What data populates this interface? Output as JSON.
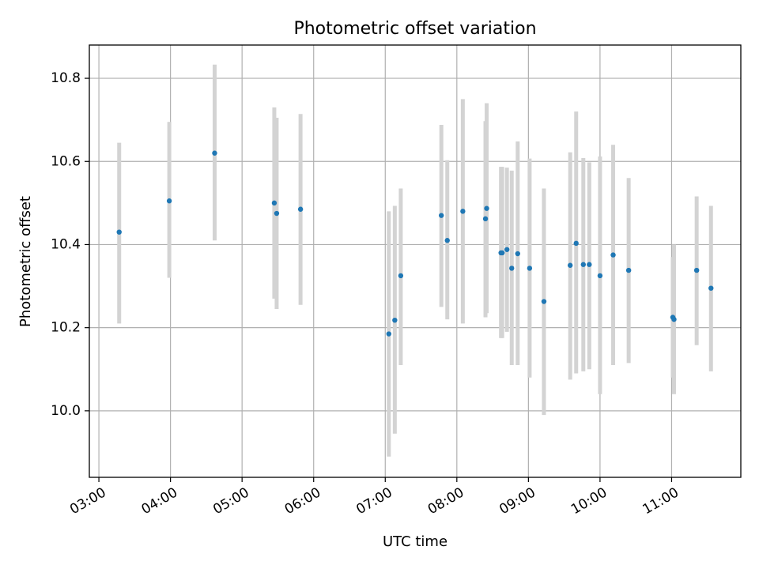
{
  "chart_data": {
    "type": "scatter",
    "title": "Photometric offset variation",
    "xlabel": "UTC time",
    "ylabel": "Photometric offset",
    "grid": true,
    "xlim": [
      "02:52",
      "11:58"
    ],
    "ylim": [
      9.84,
      10.88
    ],
    "x_ticks": [
      "03:00",
      "04:00",
      "05:00",
      "06:00",
      "07:00",
      "08:00",
      "09:00",
      "10:00",
      "11:00"
    ],
    "y_ticks": [
      10.0,
      10.2,
      10.4,
      10.6,
      10.8
    ],
    "y_tick_labels": [
      "10.0",
      "10.2",
      "10.4",
      "10.6",
      "10.8"
    ],
    "colors": {
      "point": "#1f77b4",
      "errorbar": "#d3d3d3",
      "grid": "#b0b0b0"
    },
    "series": [
      {
        "points": [
          {
            "x": "03:17",
            "y": 10.43,
            "lo": 10.21,
            "hi": 10.645
          },
          {
            "x": "03:59",
            "y": 10.505,
            "lo": 10.32,
            "hi": 10.695
          },
          {
            "x": "04:37",
            "y": 10.62,
            "lo": 10.41,
            "hi": 10.833
          },
          {
            "x": "05:27",
            "y": 10.5,
            "lo": 10.27,
            "hi": 10.73
          },
          {
            "x": "05:29",
            "y": 10.475,
            "lo": 10.245,
            "hi": 10.705
          },
          {
            "x": "05:49",
            "y": 10.485,
            "lo": 10.255,
            "hi": 10.714
          },
          {
            "x": "07:03",
            "y": 10.185,
            "lo": 9.89,
            "hi": 10.48
          },
          {
            "x": "07:08",
            "y": 10.218,
            "lo": 9.945,
            "hi": 10.493
          },
          {
            "x": "07:13",
            "y": 10.325,
            "lo": 10.11,
            "hi": 10.535
          },
          {
            "x": "07:47",
            "y": 10.47,
            "lo": 10.25,
            "hi": 10.688
          },
          {
            "x": "07:52",
            "y": 10.41,
            "lo": 10.22,
            "hi": 10.603
          },
          {
            "x": "08:05",
            "y": 10.48,
            "lo": 10.21,
            "hi": 10.75
          },
          {
            "x": "08:24",
            "y": 10.462,
            "lo": 10.225,
            "hi": 10.697
          },
          {
            "x": "08:25",
            "y": 10.487,
            "lo": 10.235,
            "hi": 10.74
          },
          {
            "x": "08:37",
            "y": 10.38,
            "lo": 10.175,
            "hi": 10.587
          },
          {
            "x": "08:38",
            "y": 10.38,
            "lo": 10.175,
            "hi": 10.587
          },
          {
            "x": "08:42",
            "y": 10.388,
            "lo": 10.19,
            "hi": 10.585
          },
          {
            "x": "08:46",
            "y": 10.343,
            "lo": 10.11,
            "hi": 10.578
          },
          {
            "x": "08:51",
            "y": 10.378,
            "lo": 10.11,
            "hi": 10.648
          },
          {
            "x": "09:01",
            "y": 10.343,
            "lo": 10.08,
            "hi": 10.607
          },
          {
            "x": "09:13",
            "y": 10.263,
            "lo": 9.99,
            "hi": 10.535
          },
          {
            "x": "09:35",
            "y": 10.35,
            "lo": 10.075,
            "hi": 10.622
          },
          {
            "x": "09:40",
            "y": 10.403,
            "lo": 10.09,
            "hi": 10.72
          },
          {
            "x": "09:46",
            "y": 10.352,
            "lo": 10.095,
            "hi": 10.608
          },
          {
            "x": "09:51",
            "y": 10.352,
            "lo": 10.1,
            "hi": 10.598
          },
          {
            "x": "10:00",
            "y": 10.325,
            "lo": 10.04,
            "hi": 10.612
          },
          {
            "x": "10:11",
            "y": 10.375,
            "lo": 10.11,
            "hi": 10.64
          },
          {
            "x": "10:24",
            "y": 10.338,
            "lo": 10.115,
            "hi": 10.56
          },
          {
            "x": "11:01",
            "y": 10.225,
            "lo": 10.08,
            "hi": 10.37
          },
          {
            "x": "11:02",
            "y": 10.22,
            "lo": 10.04,
            "hi": 10.4
          },
          {
            "x": "11:21",
            "y": 10.338,
            "lo": 10.158,
            "hi": 10.516
          },
          {
            "x": "11:33",
            "y": 10.295,
            "lo": 10.095,
            "hi": 10.493
          }
        ]
      }
    ]
  }
}
